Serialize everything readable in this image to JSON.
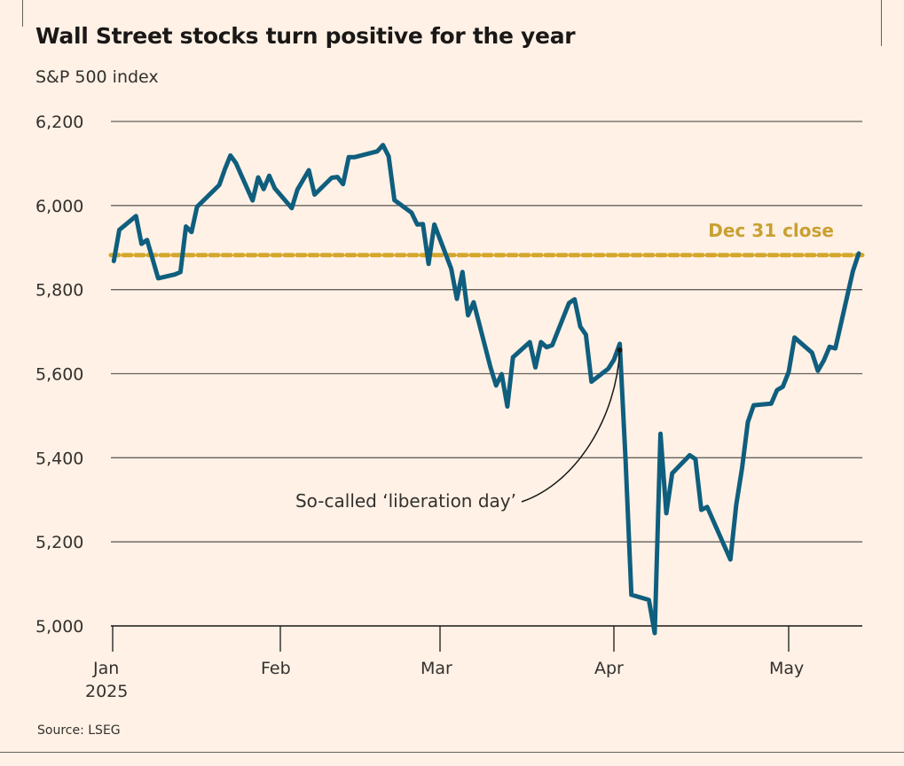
{
  "title": "Wall Street stocks turn positive for the year",
  "subtitle": "S&P 500 index",
  "source": "Source: LSEG",
  "chart_data": {
    "type": "line",
    "title": "Wall Street stocks turn positive for the year",
    "ylabel": "S&P 500 index",
    "ylim": [
      5000,
      6200
    ],
    "yticks": [
      5000,
      5200,
      5400,
      5600,
      5800,
      6000,
      6200
    ],
    "ytick_labels": [
      "5,000",
      "5,200",
      "5,400",
      "5,600",
      "5,800",
      "6,000",
      "6,200"
    ],
    "xticks": [
      "2025-01-01",
      "2025-02-01",
      "2025-03-01",
      "2025-04-01",
      "2025-05-01"
    ],
    "xtick_labels": [
      "Jan",
      "Feb",
      "Mar",
      "Apr",
      "May"
    ],
    "xtick_sublabel": "2025",
    "grid": "horizontal",
    "line_color": "#0f5e7e",
    "reference_line": {
      "label": "Dec 31 close",
      "value": 5882,
      "color": "#d4a72c",
      "style": "dotted"
    },
    "annotation": {
      "text": "So-called ‘liberation day’",
      "date": "2025-04-02",
      "value": 5671
    },
    "series": [
      {
        "dates": [
          "2025-01-02",
          "2025-01-03",
          "2025-01-06",
          "2025-01-07",
          "2025-01-08",
          "2025-01-10",
          "2025-01-13",
          "2025-01-14",
          "2025-01-15",
          "2025-01-16",
          "2025-01-17",
          "2025-01-21",
          "2025-01-22",
          "2025-01-23",
          "2025-01-24",
          "2025-01-27",
          "2025-01-28",
          "2025-01-29",
          "2025-01-30",
          "2025-01-31",
          "2025-02-03",
          "2025-02-04",
          "2025-02-05",
          "2025-02-06",
          "2025-02-07",
          "2025-02-10",
          "2025-02-11",
          "2025-02-12",
          "2025-02-13",
          "2025-02-14",
          "2025-02-18",
          "2025-02-19",
          "2025-02-20",
          "2025-02-21",
          "2025-02-24",
          "2025-02-25",
          "2025-02-26",
          "2025-02-27",
          "2025-02-28",
          "2025-03-03",
          "2025-03-04",
          "2025-03-05",
          "2025-03-06",
          "2025-03-07",
          "2025-03-10",
          "2025-03-11",
          "2025-03-12",
          "2025-03-13",
          "2025-03-14",
          "2025-03-17",
          "2025-03-18",
          "2025-03-19",
          "2025-03-20",
          "2025-03-21",
          "2025-03-24",
          "2025-03-25",
          "2025-03-26",
          "2025-03-27",
          "2025-03-28",
          "2025-03-31",
          "2025-04-01",
          "2025-04-02",
          "2025-04-03",
          "2025-04-04",
          "2025-04-07",
          "2025-04-08",
          "2025-04-09",
          "2025-04-10",
          "2025-04-11",
          "2025-04-14",
          "2025-04-15",
          "2025-04-16",
          "2025-04-17",
          "2025-04-21",
          "2025-04-22",
          "2025-04-23",
          "2025-04-24",
          "2025-04-25",
          "2025-04-28",
          "2025-04-29",
          "2025-04-30",
          "2025-05-01",
          "2025-05-02",
          "2025-05-05",
          "2025-05-06",
          "2025-05-07",
          "2025-05-08",
          "2025-05-09",
          "2025-05-12",
          "2025-05-13"
        ],
        "values": [
          5868,
          5942,
          5975,
          5909,
          5918,
          5827,
          5836,
          5842,
          5950,
          5937,
          5997,
          6049,
          6086,
          6119,
          6101,
          6012,
          6067,
          6039,
          6071,
          6041,
          5994,
          6038,
          6061,
          6084,
          6026,
          6066,
          6068,
          6051,
          6115,
          6115,
          6129,
          6144,
          6117,
          6013,
          5983,
          5955,
          5956,
          5861,
          5955,
          5850,
          5778,
          5842,
          5739,
          5770,
          5615,
          5572,
          5599,
          5522,
          5639,
          5675,
          5615,
          5675,
          5663,
          5668,
          5768,
          5777,
          5712,
          5693,
          5581,
          5612,
          5633,
          5671,
          5397,
          5074,
          5062,
          4983,
          5457,
          5268,
          5363,
          5406,
          5397,
          5276,
          5283,
          5158,
          5288,
          5376,
          5485,
          5525,
          5529,
          5561,
          5569,
          5604,
          5686,
          5650,
          5607,
          5631,
          5664,
          5660,
          5844,
          5886
        ]
      }
    ]
  }
}
